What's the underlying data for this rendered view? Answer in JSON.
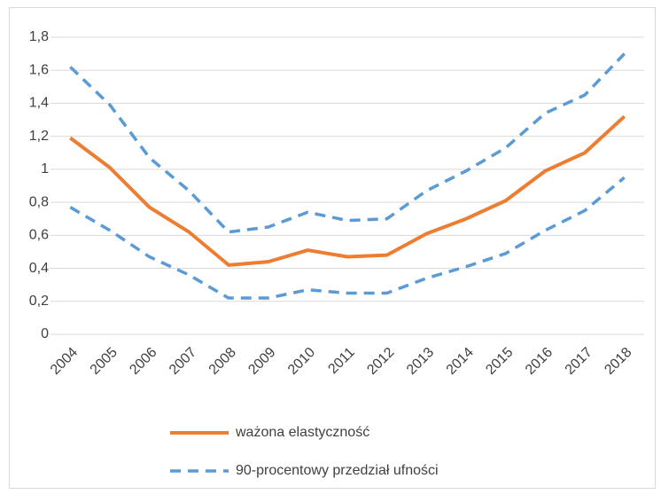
{
  "chart_data": {
    "type": "line",
    "categories": [
      "2004",
      "2005",
      "2006",
      "2007",
      "2008",
      "2009",
      "2010",
      "2011",
      "2012",
      "2013",
      "2014",
      "2015",
      "2016",
      "2017",
      "2018"
    ],
    "series": [
      {
        "name": "ważona elastyczność",
        "color": "#ed7d31",
        "values": [
          1.19,
          1.01,
          0.77,
          0.62,
          0.42,
          0.44,
          0.51,
          0.47,
          0.48,
          0.61,
          0.7,
          0.81,
          0.99,
          1.1,
          1.32
        ]
      },
      {
        "name": "90-procentowy przedział ufności",
        "color": "#5b9bd5",
        "dashed": true,
        "upper": [
          1.62,
          1.39,
          1.07,
          0.87,
          0.62,
          0.65,
          0.74,
          0.69,
          0.7,
          0.87,
          0.99,
          1.13,
          1.34,
          1.45,
          1.7
        ],
        "lower": [
          0.77,
          0.63,
          0.47,
          0.36,
          0.22,
          0.22,
          0.27,
          0.25,
          0.25,
          0.34,
          0.41,
          0.49,
          0.63,
          0.75,
          0.95
        ]
      }
    ],
    "ylim": [
      0,
      1.8
    ],
    "yticks": [
      0,
      {
        "value": 0.2,
        "label": "0,2"
      },
      {
        "value": 0.4,
        "label": "0,4"
      },
      {
        "value": 0.6,
        "label": "0,6"
      },
      {
        "value": 0.8,
        "label": "0,8"
      },
      1,
      {
        "value": 1.2,
        "label": "1,2"
      },
      {
        "value": 1.4,
        "label": "1,4"
      },
      {
        "value": 1.6,
        "label": "1,6"
      },
      {
        "value": 1.8,
        "label": "1,8"
      }
    ],
    "grid": true,
    "legend": "bottom"
  }
}
